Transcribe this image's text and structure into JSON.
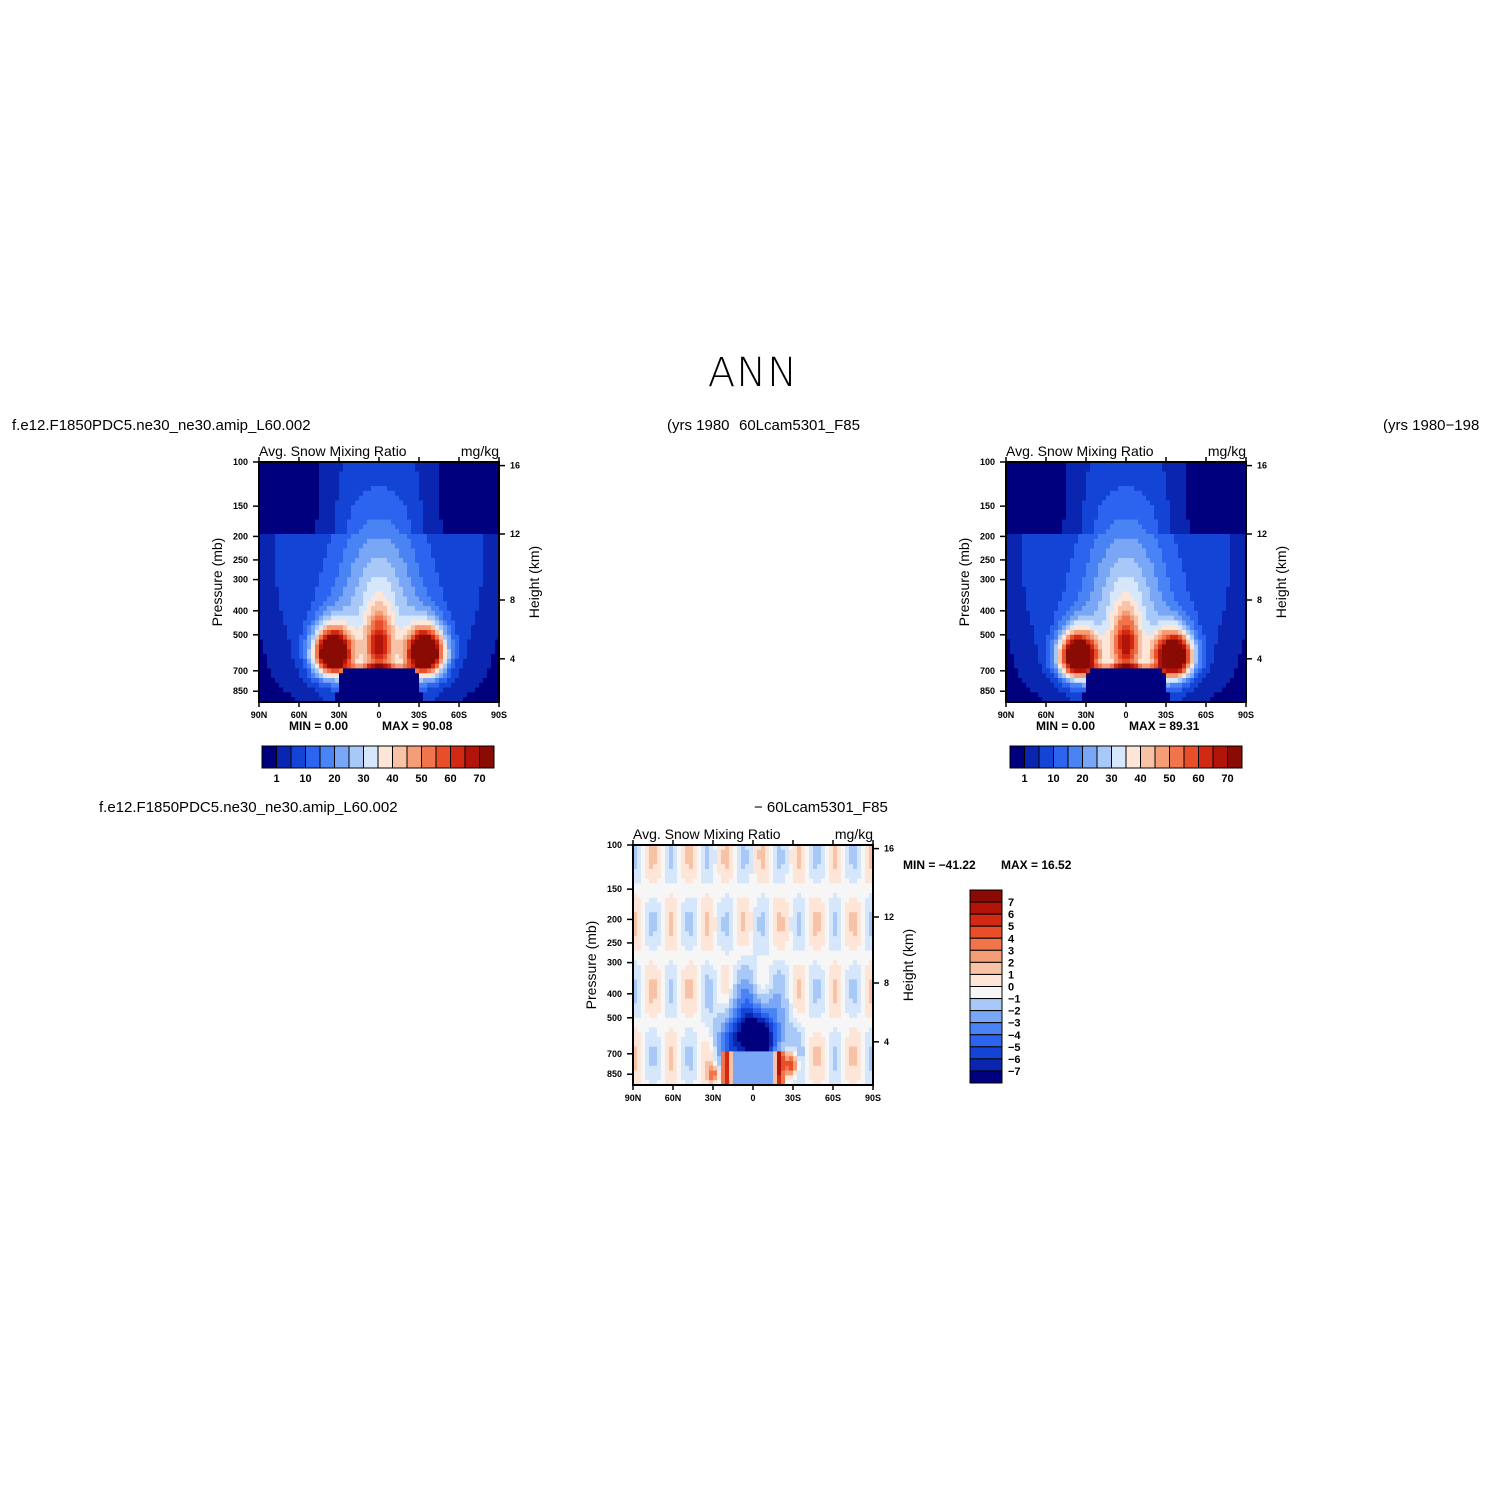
{
  "page_title": "ANN",
  "header": {
    "case_left": "f.e12.F1850PDC5.ne30_ne30.amip_L60.002",
    "years_left": "(yrs  1980",
    "case_right": "60Lcam5301_F85",
    "years_right": "(yrs  1980−198",
    "diff_case_left": "f.e12.F1850PDC5.ne30_ne30.amip_L60.002",
    "diff_case_right": "−  60Lcam5301_F85"
  },
  "colors": {
    "abs_scale": [
      "#00007f",
      "#0a26b0",
      "#1444d6",
      "#2c64f0",
      "#4a84f4",
      "#7aa6f6",
      "#a8c8f8",
      "#d6e6fb",
      "#fde6d8",
      "#f8c2a6",
      "#f59d76",
      "#f0754c",
      "#e84e2a",
      "#d22a12",
      "#b2140a",
      "#8a0a04"
    ],
    "diff_scale": [
      "#00007f",
      "#0a26b0",
      "#1444d6",
      "#2c64f0",
      "#4a84f4",
      "#7aa6f6",
      "#a8c8f8",
      "#d6e6fb",
      "#f6f6f6",
      "#fde6d8",
      "#f8c2a6",
      "#f59d76",
      "#f0754c",
      "#e84e2a",
      "#d22a12",
      "#b2140a",
      "#8a0a04"
    ]
  },
  "chart_data": [
    {
      "type": "heatmap",
      "title_left": "Avg.  Snow  Mixing  Ratio",
      "title_right": "mg/kg",
      "ylabel": "Pressure  (mb)",
      "ylabel_right": "Height  (km)",
      "x_ticks": [
        "90N",
        "60N",
        "30N",
        "0",
        "30S",
        "60S",
        "90S"
      ],
      "x_values": [
        90,
        60,
        30,
        0,
        -30,
        -60,
        -90
      ],
      "y_ticks": [
        100,
        150,
        200,
        250,
        300,
        400,
        500,
        700,
        850
      ],
      "y_right_ticks": [
        16,
        12,
        8,
        4
      ],
      "y_scale": "log",
      "ylim": [
        100,
        1000
      ],
      "min_text": "MIN =     0.00",
      "max_text": "MAX =    90.08",
      "colorbar_labels": [
        "1",
        "10",
        "20",
        "30",
        "40",
        "50",
        "60",
        "70"
      ],
      "peaks": [
        {
          "lat": 35,
          "p": 600,
          "value": 90.08
        },
        {
          "lat": -35,
          "p": 600,
          "value": 88
        }
      ]
    },
    {
      "type": "heatmap",
      "title_left": "Avg.  Snow  Mixing  Ratio",
      "title_right": "mg/kg",
      "ylabel": "Pressure  (mb)",
      "ylabel_right": "Height  (km)",
      "x_ticks": [
        "90N",
        "60N",
        "30N",
        "0",
        "30S",
        "60S",
        "90S"
      ],
      "x_values": [
        90,
        60,
        30,
        0,
        -30,
        -60,
        -90
      ],
      "y_ticks": [
        100,
        150,
        200,
        250,
        300,
        400,
        500,
        700,
        850
      ],
      "y_right_ticks": [
        16,
        12,
        8,
        4
      ],
      "y_scale": "log",
      "ylim": [
        100,
        1000
      ],
      "min_text": "MIN =     0.00",
      "max_text": "MAX =    89.31",
      "colorbar_labels": [
        "1",
        "10",
        "20",
        "30",
        "40",
        "50",
        "60",
        "70"
      ],
      "peaks": [
        {
          "lat": 38,
          "p": 620,
          "value": 89.31
        },
        {
          "lat": -33,
          "p": 620,
          "value": 86
        }
      ]
    },
    {
      "type": "heatmap",
      "title_left": "Avg.  Snow  Mixing  Ratio",
      "title_right": "mg/kg",
      "ylabel": "Pressure  (mb)",
      "ylabel_right": "Height  (km)",
      "x_ticks": [
        "90N",
        "60N",
        "30N",
        "0",
        "30S",
        "60S",
        "90S"
      ],
      "x_values": [
        90,
        60,
        30,
        0,
        -30,
        -60,
        -90
      ],
      "y_ticks": [
        100,
        150,
        200,
        250,
        300,
        400,
        500,
        700,
        850
      ],
      "y_right_ticks": [
        16,
        12,
        8,
        4
      ],
      "y_scale": "log",
      "ylim": [
        100,
        1000
      ],
      "min_text": "MIN =  −41.22",
      "max_text": "MAX =    16.52",
      "colorbar_labels": [
        "7",
        "6",
        "5",
        "4",
        "3",
        "2",
        "1",
        "0",
        "−1",
        "−2",
        "−3",
        "−4",
        "−5",
        "−6",
        "−7"
      ]
    }
  ]
}
